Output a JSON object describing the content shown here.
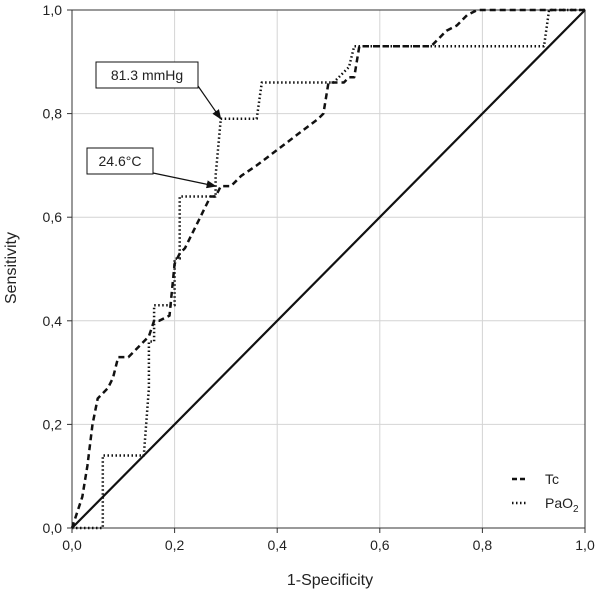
{
  "chart_data": {
    "type": "line",
    "title": "",
    "xlabel": "1-Specificity",
    "ylabel": "Sensitivity",
    "xlim": [
      0,
      1
    ],
    "ylim": [
      0,
      1
    ],
    "grid": true,
    "x_ticks": [
      0,
      0.2,
      0.4,
      0.6,
      0.8,
      1.0
    ],
    "y_ticks": [
      0,
      0.2,
      0.4,
      0.6,
      0.8,
      1.0
    ],
    "x_tick_labels": [
      "0,0",
      "0,2",
      "0,4",
      "0,6",
      "0,8",
      "1,0"
    ],
    "y_tick_labels": [
      "0,0",
      "0,2",
      "0,4",
      "0,6",
      "0,8",
      "1,0"
    ],
    "series": [
      {
        "name": "Tc",
        "legend_label": "Tc",
        "style": "dashed",
        "x": [
          0,
          0.02,
          0.03,
          0.04,
          0.05,
          0.07,
          0.08,
          0.09,
          0.11,
          0.12,
          0.13,
          0.14,
          0.15,
          0.16,
          0.17,
          0.19,
          0.2,
          0.21,
          0.22,
          0.23,
          0.24,
          0.25,
          0.26,
          0.27,
          0.28,
          0.29,
          0.31,
          0.33,
          0.36,
          0.4,
          0.44,
          0.48,
          0.49,
          0.5,
          0.53,
          0.54,
          0.55,
          0.56,
          0.57,
          0.59,
          0.61,
          0.65,
          0.69,
          0.7,
          0.73,
          0.75,
          0.77,
          0.79,
          0.81,
          0.85,
          0.9,
          0.92,
          1.0
        ],
        "y": [
          0,
          0.06,
          0.12,
          0.2,
          0.25,
          0.27,
          0.29,
          0.33,
          0.33,
          0.34,
          0.35,
          0.36,
          0.37,
          0.4,
          0.4,
          0.41,
          0.51,
          0.53,
          0.54,
          0.56,
          0.58,
          0.6,
          0.62,
          0.64,
          0.64,
          0.66,
          0.66,
          0.68,
          0.7,
          0.73,
          0.76,
          0.79,
          0.8,
          0.86,
          0.86,
          0.87,
          0.87,
          0.93,
          0.93,
          0.93,
          0.93,
          0.93,
          0.93,
          0.93,
          0.96,
          0.97,
          0.99,
          1.0,
          1.0,
          1.0,
          1.0,
          1.0,
          1.0
        ]
      },
      {
        "name": "PaO2",
        "legend_label": "PaO",
        "legend_subscript": "2",
        "style": "dotted",
        "x": [
          0,
          0.05,
          0.06,
          0.06,
          0.08,
          0.14,
          0.15,
          0.15,
          0.16,
          0.16,
          0.2,
          0.2,
          0.21,
          0.21,
          0.27,
          0.28,
          0.28,
          0.29,
          0.36,
          0.37,
          0.39,
          0.5,
          0.51,
          0.54,
          0.55,
          0.57,
          0.59,
          0.7,
          0.8,
          0.92,
          0.93,
          1.0
        ],
        "y": [
          0,
          0,
          0,
          0.14,
          0.14,
          0.14,
          0.27,
          0.36,
          0.36,
          0.43,
          0.43,
          0.52,
          0.52,
          0.64,
          0.64,
          0.64,
          0.68,
          0.79,
          0.79,
          0.86,
          0.86,
          0.86,
          0.86,
          0.89,
          0.93,
          0.93,
          0.93,
          0.93,
          0.93,
          0.93,
          1.0,
          1.0
        ]
      },
      {
        "name": "Reference",
        "style": "solid",
        "x": [
          0,
          1
        ],
        "y": [
          0,
          1
        ]
      }
    ],
    "annotations": [
      {
        "text": "81.3 mmHg",
        "target_x": 0.29,
        "target_y": 0.79
      },
      {
        "text": "24.6°C",
        "target_x": 0.28,
        "target_y": 0.66
      }
    ],
    "legend": "bottom-right"
  }
}
